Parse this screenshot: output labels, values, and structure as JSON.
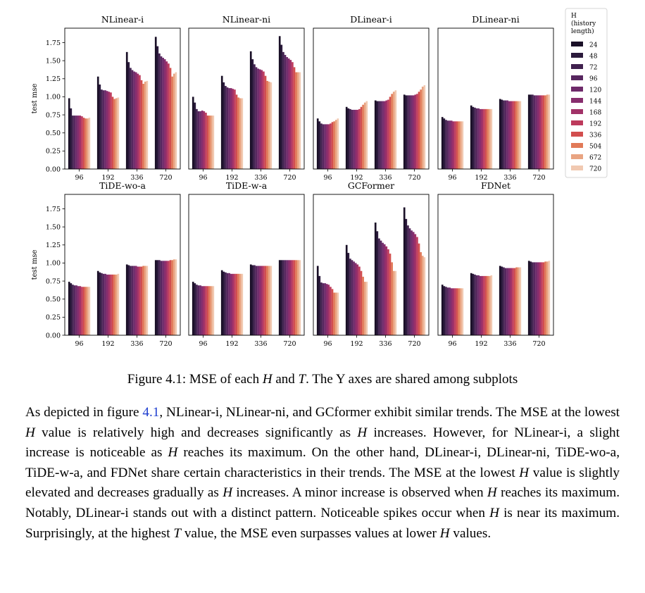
{
  "chart_data": {
    "type": "bar",
    "x_categories": [
      "96",
      "192",
      "336",
      "720"
    ],
    "ylabel": "test mse",
    "yticks": [
      "0.00",
      "0.25",
      "0.50",
      "0.75",
      "1.00",
      "1.25",
      "1.50",
      "1.75"
    ],
    "ylim": [
      0,
      1.95
    ],
    "legend": {
      "title": "H\n(history\nlength)",
      "position": "right",
      "entries": [
        "24",
        "48",
        "72",
        "96",
        "120",
        "144",
        "168",
        "192",
        "336",
        "504",
        "672",
        "720"
      ]
    },
    "colors": [
      "#1a1027",
      "#2b1a3c",
      "#40204e",
      "#57265f",
      "#6e2a6a",
      "#872e6e",
      "#a13268",
      "#bd3a5c",
      "#d24e4e",
      "#e17a58",
      "#e9a482",
      "#f1c9b1"
    ],
    "subplots": [
      {
        "title": "NLinear-i",
        "values": [
          [
            0.98,
            0.84,
            0.74,
            0.74,
            0.74,
            0.74,
            0.74,
            0.73,
            0.71,
            0.7,
            0.7,
            0.71
          ],
          [
            1.28,
            1.17,
            1.1,
            1.09,
            1.09,
            1.08,
            1.07,
            1.06,
            1.0,
            0.97,
            0.98,
            0.99
          ],
          [
            1.62,
            1.48,
            1.4,
            1.37,
            1.35,
            1.34,
            1.32,
            1.3,
            1.23,
            1.18,
            1.21,
            1.22
          ],
          [
            1.83,
            1.7,
            1.6,
            1.56,
            1.54,
            1.52,
            1.49,
            1.46,
            1.4,
            1.28,
            1.32,
            1.34
          ]
        ]
      },
      {
        "title": "NLinear-ni",
        "values": [
          [
            1.0,
            0.92,
            0.83,
            0.8,
            0.8,
            0.81,
            0.8,
            0.78,
            0.74,
            0.74,
            0.74,
            0.74
          ],
          [
            1.29,
            1.2,
            1.15,
            1.13,
            1.12,
            1.12,
            1.11,
            1.1,
            1.03,
            0.99,
            0.98,
            0.98
          ],
          [
            1.63,
            1.52,
            1.45,
            1.41,
            1.39,
            1.38,
            1.37,
            1.35,
            1.29,
            1.22,
            1.21,
            1.2
          ],
          [
            1.84,
            1.72,
            1.62,
            1.58,
            1.55,
            1.53,
            1.51,
            1.48,
            1.41,
            1.34,
            1.34,
            1.34
          ]
        ]
      },
      {
        "title": "DLinear-i",
        "values": [
          [
            0.7,
            0.66,
            0.63,
            0.62,
            0.62,
            0.62,
            0.62,
            0.63,
            0.65,
            0.66,
            0.68,
            0.7
          ],
          [
            0.86,
            0.84,
            0.83,
            0.82,
            0.82,
            0.82,
            0.82,
            0.83,
            0.86,
            0.89,
            0.92,
            0.94
          ],
          [
            0.95,
            0.94,
            0.94,
            0.94,
            0.94,
            0.94,
            0.95,
            0.96,
            1.0,
            1.04,
            1.07,
            1.09
          ],
          [
            1.03,
            1.02,
            1.02,
            1.02,
            1.02,
            1.02,
            1.03,
            1.04,
            1.07,
            1.1,
            1.14,
            1.16
          ]
        ]
      },
      {
        "title": "DLinear-ni",
        "values": [
          [
            0.72,
            0.7,
            0.68,
            0.67,
            0.67,
            0.67,
            0.66,
            0.66,
            0.66,
            0.66,
            0.66,
            0.66
          ],
          [
            0.88,
            0.86,
            0.85,
            0.84,
            0.84,
            0.83,
            0.83,
            0.83,
            0.83,
            0.83,
            0.83,
            0.83
          ],
          [
            0.97,
            0.96,
            0.95,
            0.95,
            0.95,
            0.94,
            0.94,
            0.94,
            0.94,
            0.94,
            0.94,
            0.94
          ],
          [
            1.03,
            1.03,
            1.03,
            1.02,
            1.02,
            1.02,
            1.02,
            1.02,
            1.02,
            1.02,
            1.03,
            1.03
          ]
        ]
      },
      {
        "title": "TiDE-wo-a",
        "values": [
          [
            0.74,
            0.72,
            0.7,
            0.69,
            0.69,
            0.68,
            0.68,
            0.67,
            0.67,
            0.67,
            0.67,
            0.67
          ],
          [
            0.89,
            0.87,
            0.86,
            0.85,
            0.85,
            0.84,
            0.84,
            0.84,
            0.84,
            0.84,
            0.84,
            0.85
          ],
          [
            0.98,
            0.97,
            0.96,
            0.96,
            0.96,
            0.96,
            0.95,
            0.95,
            0.95,
            0.96,
            0.96,
            0.96
          ],
          [
            1.04,
            1.04,
            1.04,
            1.03,
            1.03,
            1.03,
            1.03,
            1.03,
            1.04,
            1.04,
            1.05,
            1.05
          ]
        ]
      },
      {
        "title": "TiDE-w-a",
        "values": [
          [
            0.74,
            0.72,
            0.7,
            0.69,
            0.69,
            0.68,
            0.68,
            0.68,
            0.68,
            0.68,
            0.68,
            0.68
          ],
          [
            0.9,
            0.88,
            0.87,
            0.86,
            0.86,
            0.85,
            0.85,
            0.85,
            0.85,
            0.85,
            0.85,
            0.85
          ],
          [
            0.98,
            0.97,
            0.97,
            0.96,
            0.96,
            0.96,
            0.96,
            0.96,
            0.96,
            0.96,
            0.96,
            0.96
          ],
          [
            1.04,
            1.04,
            1.04,
            1.04,
            1.04,
            1.04,
            1.04,
            1.04,
            1.04,
            1.04,
            1.04,
            1.04
          ]
        ]
      },
      {
        "title": "GCFormer",
        "values": [
          [
            0.96,
            0.82,
            0.73,
            0.72,
            0.72,
            0.71,
            0.7,
            0.67,
            0.64,
            0.59,
            0.59,
            0.59
          ],
          [
            1.25,
            1.14,
            1.06,
            1.04,
            1.02,
            1.0,
            0.98,
            0.95,
            0.89,
            0.81,
            0.74,
            0.74
          ],
          [
            1.56,
            1.44,
            1.34,
            1.31,
            1.28,
            1.26,
            1.23,
            1.19,
            1.13,
            1.01,
            0.89,
            0.89
          ],
          [
            1.77,
            1.61,
            1.52,
            1.48,
            1.45,
            1.43,
            1.4,
            1.36,
            1.27,
            1.15,
            1.1,
            1.08
          ]
        ]
      },
      {
        "title": "FDNet",
        "values": [
          [
            0.7,
            0.68,
            0.67,
            0.66,
            0.66,
            0.65,
            0.65,
            0.65,
            0.65,
            0.65,
            0.65,
            0.65
          ],
          [
            0.86,
            0.85,
            0.84,
            0.83,
            0.83,
            0.82,
            0.82,
            0.82,
            0.82,
            0.82,
            0.82,
            0.83
          ],
          [
            0.96,
            0.95,
            0.94,
            0.93,
            0.93,
            0.93,
            0.93,
            0.93,
            0.93,
            0.94,
            0.94,
            0.94
          ],
          [
            1.03,
            1.02,
            1.01,
            1.01,
            1.01,
            1.01,
            1.01,
            1.01,
            1.01,
            1.02,
            1.02,
            1.03
          ]
        ]
      }
    ]
  },
  "caption": {
    "prefix": "Figure 4.1: MSE of each ",
    "var1": "H",
    "mid": " and ",
    "var2": "T",
    "suffix": ". The Y axes are shared among subplots"
  },
  "paragraph": [
    {
      "t": "As depicted in figure "
    },
    {
      "t": "4.1",
      "s": "ref"
    },
    {
      "t": ", NLinear-i, NLinear-ni, and GCformer exhibit similar trends. The MSE at the lowest "
    },
    {
      "t": "H",
      "s": "i"
    },
    {
      "t": " value is relatively high and decreases significantly as "
    },
    {
      "t": "H",
      "s": "i"
    },
    {
      "t": " increases. However, for NLinear-i, a slight increase is noticeable as "
    },
    {
      "t": "H",
      "s": "i"
    },
    {
      "t": " reaches its maximum. On the other hand, DLinear-i, DLinear-ni, TiDE-wo-a, TiDE-w-a, and FDNet share certain characteristics in their trends. The MSE at the lowest "
    },
    {
      "t": "H",
      "s": "i"
    },
    {
      "t": " value is slightly elevated and decreases gradually as "
    },
    {
      "t": "H",
      "s": "i"
    },
    {
      "t": " increases. A minor increase is observed when "
    },
    {
      "t": "H",
      "s": "i"
    },
    {
      "t": " reaches its maximum. Notably, DLinear-i stands out with a distinct pattern. Noticeable spikes occur when "
    },
    {
      "t": "H",
      "s": "i"
    },
    {
      "t": " is near its maximum. Surprisingly, at the highest "
    },
    {
      "t": "T",
      "s": "i"
    },
    {
      "t": " value, the MSE even surpasses values at lower "
    },
    {
      "t": "H",
      "s": "i"
    },
    {
      "t": " values."
    }
  ]
}
